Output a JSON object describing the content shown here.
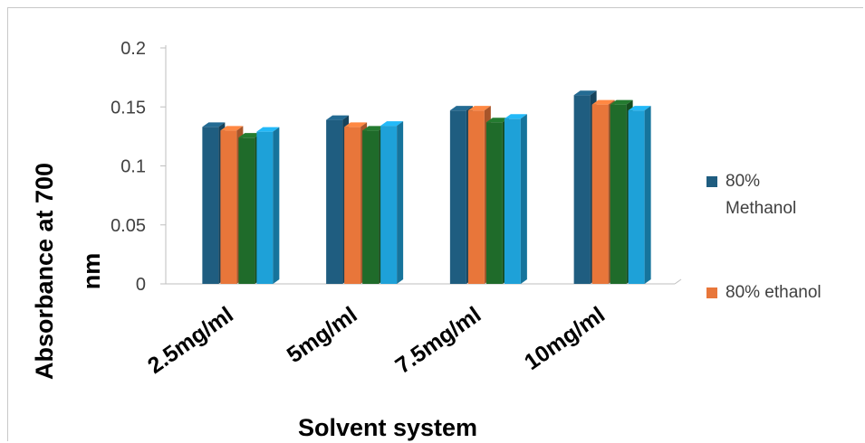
{
  "chart_data": {
    "type": "bar",
    "categories": [
      "2.5mg/ml",
      "5mg/ml",
      "7.5mg/ml",
      "10mg/ml"
    ],
    "series": [
      {
        "name": "80% Methanol",
        "color": "#1f5d80",
        "values": [
          0.133,
          0.139,
          0.147,
          0.16
        ]
      },
      {
        "name": "80% ethanol",
        "color": "#e8763a",
        "values": [
          0.13,
          0.133,
          0.147,
          0.152
        ]
      },
      {
        "name": "",
        "color": "#1f6b2a",
        "values": [
          0.124,
          0.13,
          0.137,
          0.152
        ]
      },
      {
        "name": "",
        "color": "#1ea1d8",
        "values": [
          0.129,
          0.134,
          0.14,
          0.147
        ]
      }
    ],
    "ylim": [
      0,
      0.2
    ],
    "yticks": [
      "0",
      "0.05",
      "0.1",
      "0.15",
      "0.2"
    ],
    "xlabel": "Solvent system",
    "ylabel": "Absorbance at 700 nm",
    "ylabel_lines": [
      "Absorbance at 700",
      "nm"
    ],
    "legend": {
      "placement": "right",
      "items": [
        {
          "lines": [
            "80%",
            "Methanol"
          ],
          "color": "#1f5d80"
        },
        {
          "lines": [
            "80% ethanol"
          ],
          "color": "#e8763a"
        }
      ]
    },
    "grid": false
  }
}
